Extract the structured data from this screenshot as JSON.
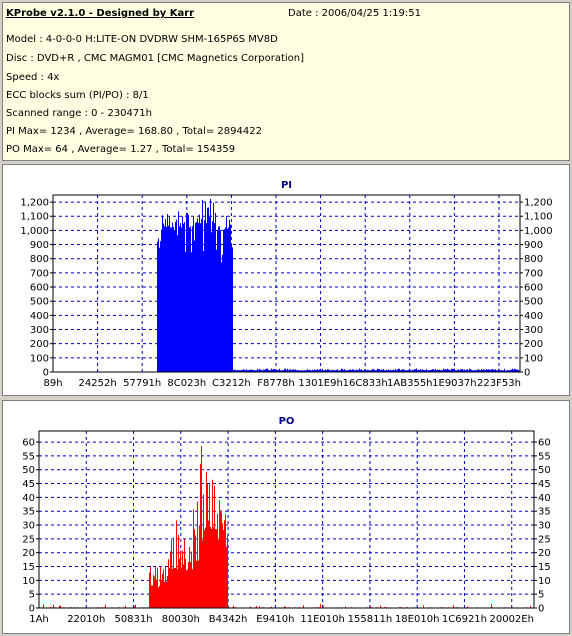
{
  "info": {
    "app_title": "KProbe v2.1.0 - Designed by Karr",
    "date": "Date : 2006/04/25 1:19:51",
    "model": "Model : 4-0-0-0 H:LITE-ON DVDRW SHM-165P6S MV8D",
    "disc": "Disc : DVD+R , CMC MAGM01 [CMC Magnetics Corporation]",
    "speed": "Speed : 4x",
    "ecc": "ECC blocks sum (PI/PO) : 8/1",
    "range": "Scanned range : 0 - 230471h",
    "pi_stats": "PI Max= 1234 , Average= 168.80 , Total= 2894422",
    "po_stats": "PO Max= 64 , Average= 1.27 , Total= 154359"
  },
  "colors": {
    "pi": "#0000ff",
    "po": "#ff0000",
    "grid": "#0000c0",
    "panel_title": "#000080"
  },
  "chart_data": [
    {
      "type": "bar",
      "title": "PI",
      "xlabel": "",
      "ylabel": "",
      "x_ticks": [
        "89h",
        "24252h",
        "57791h",
        "8C023h",
        "C3212h",
        "F8778h",
        "1301E9h",
        "16C833h",
        "1AB355h",
        "1E9037h",
        "223F53h"
      ],
      "y_ticks": [
        0,
        100,
        200,
        300,
        400,
        500,
        600,
        700,
        800,
        900,
        1000,
        1100,
        1200
      ],
      "y_tick_labels": [
        "0",
        "100",
        "200",
        "300",
        "400",
        "500",
        "600",
        "700",
        "800",
        "900",
        "1,000",
        "1,100",
        "1,200"
      ],
      "ylim": [
        0,
        1250
      ],
      "xlim": [
        0,
        1
      ],
      "grid": true,
      "segments": [
        {
          "x_start": 0.0,
          "x_end": 0.222,
          "level": 2,
          "peak": 5
        },
        {
          "x_start": 0.222,
          "x_end": 0.233,
          "level": 920,
          "peak": 1100
        },
        {
          "x_start": 0.233,
          "x_end": 0.3,
          "level": 1020,
          "peak": 1160
        },
        {
          "x_start": 0.3,
          "x_end": 0.35,
          "level": 1050,
          "peak": 1234
        },
        {
          "x_start": 0.35,
          "x_end": 0.38,
          "level": 1000,
          "peak": 1150
        },
        {
          "x_start": 0.38,
          "x_end": 0.385,
          "level": 880,
          "peak": 980
        },
        {
          "x_start": 0.385,
          "x_end": 1.0,
          "level": 12,
          "peak": 25
        }
      ]
    },
    {
      "type": "bar",
      "title": "PO",
      "xlabel": "",
      "ylabel": "",
      "x_ticks": [
        "1Ah",
        "22010h",
        "50831h",
        "80030h",
        "B4342h",
        "E9410h",
        "11E010h",
        "155811h",
        "18E010h",
        "1C6921h",
        "20002Eh"
      ],
      "y_ticks": [
        0,
        5,
        10,
        15,
        20,
        25,
        30,
        35,
        40,
        45,
        50,
        55,
        60
      ],
      "y_tick_labels": [
        "0",
        "5",
        "10",
        "15",
        "20",
        "25",
        "30",
        "35",
        "40",
        "45",
        "50",
        "55",
        "60"
      ],
      "ylim": [
        0,
        64
      ],
      "xlim": [
        0,
        1
      ],
      "grid": true,
      "segments": [
        {
          "x_start": 0.0,
          "x_end": 0.222,
          "level": 0.3,
          "peak": 1.5
        },
        {
          "x_start": 0.222,
          "x_end": 0.26,
          "level": 8,
          "peak": 18
        },
        {
          "x_start": 0.26,
          "x_end": 0.31,
          "level": 14,
          "peak": 32
        },
        {
          "x_start": 0.31,
          "x_end": 0.33,
          "level": 20,
          "peak": 60
        },
        {
          "x_start": 0.33,
          "x_end": 0.36,
          "level": 28,
          "peak": 64
        },
        {
          "x_start": 0.36,
          "x_end": 0.38,
          "level": 22,
          "peak": 45
        },
        {
          "x_start": 0.38,
          "x_end": 1.0,
          "level": 0.3,
          "peak": 1.5
        }
      ]
    }
  ]
}
